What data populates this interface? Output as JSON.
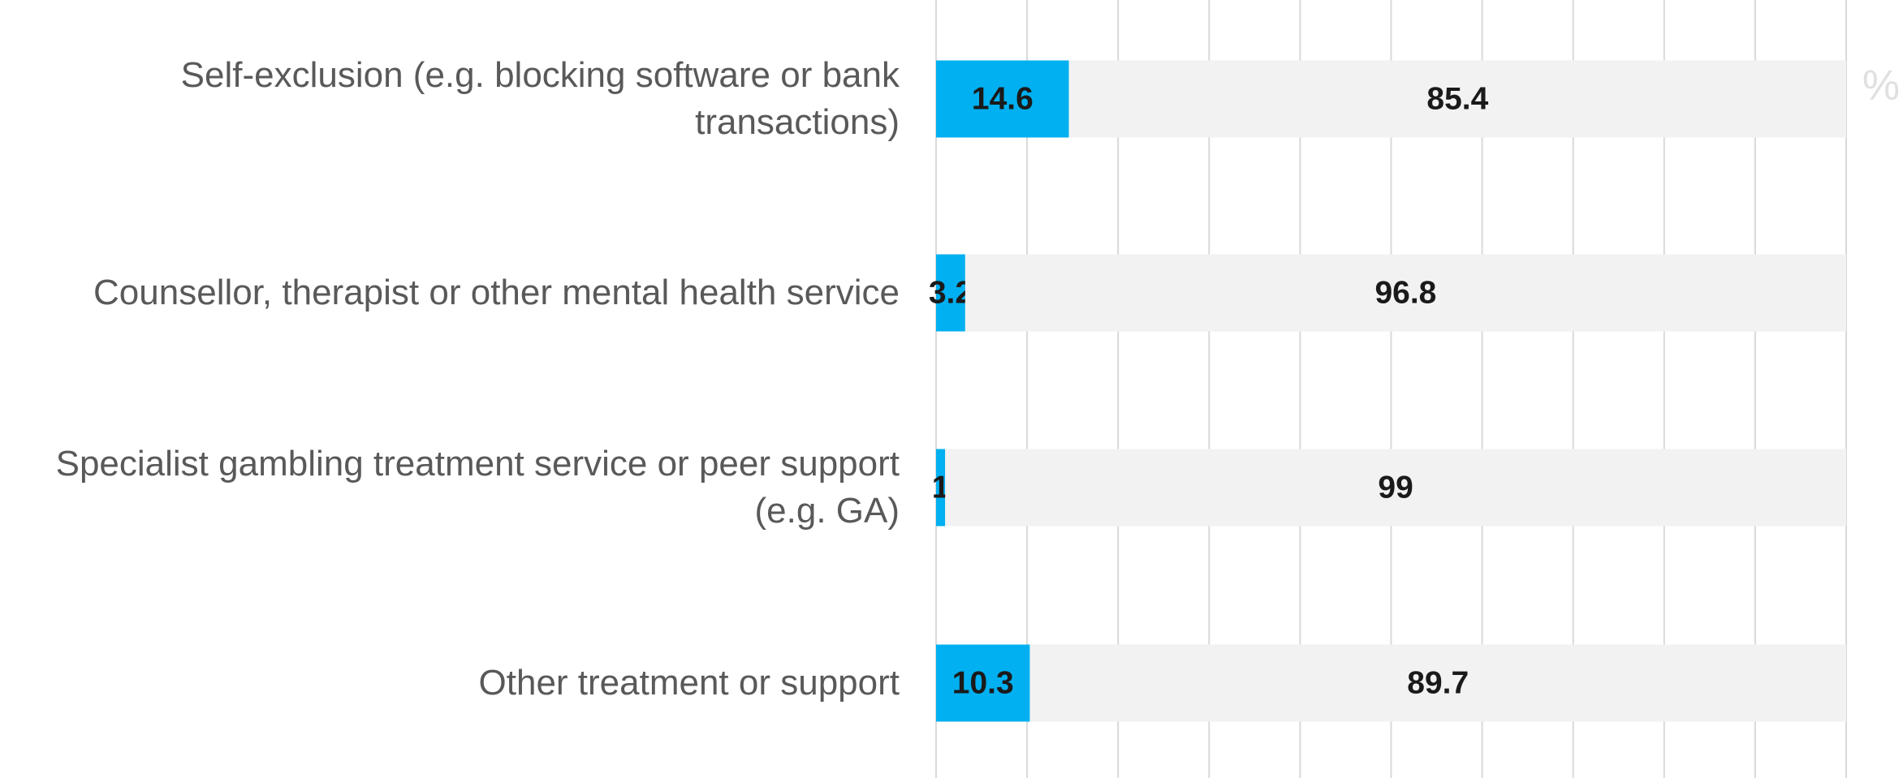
{
  "chart_data": {
    "type": "stacked_bar_horizontal",
    "categories": [
      "Self-exclusion (e.g. blocking software or bank transactions)",
      "Counsellor, therapist or other mental health service",
      "Specialist gambling treatment service or peer support (e.g. GA)",
      "Other treatment or support"
    ],
    "series": [
      {
        "color": "#00b0f0",
        "values": [
          14.6,
          3.2,
          1,
          10.3
        ]
      },
      {
        "color": "#f2f2f2",
        "values": [
          85.4,
          96.8,
          99,
          89.7
        ]
      }
    ],
    "xlim": [
      0,
      100
    ],
    "xticks": [
      0,
      10,
      20,
      30,
      40,
      50,
      60,
      70,
      80,
      90,
      100
    ],
    "grid": true,
    "annotation": "%"
  }
}
